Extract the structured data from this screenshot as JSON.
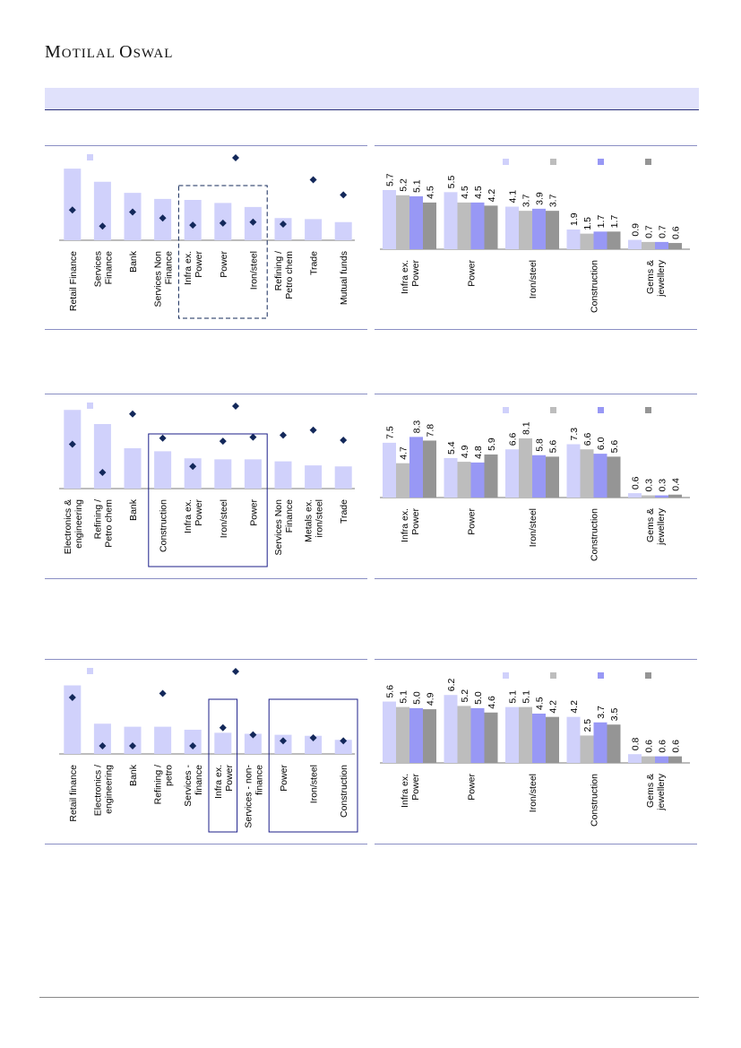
{
  "brand": {
    "logo_text_1": "M",
    "logo_text_2": "OTILAL ",
    "logo_text_3": "O",
    "logo_text_4": "SWAL"
  },
  "colors": {
    "bar_light": "#d0d1fb",
    "bar_grey": "#bdbdbd",
    "bar_blue": "#9898f5",
    "bar_dark": "#959595",
    "diamond": "#13285a",
    "box_dash": "#13285a",
    "box_solid": "#1c1f8a"
  },
  "chart_data": [
    {
      "id": "c1",
      "type": "bar",
      "categories": [
        "Retail Finance",
        "Services Finance",
        "Bank",
        "Services Non Finance",
        "Infra ex. Power",
        "Power",
        "Iron/steel",
        "Refining / Petro chem",
        "Trade",
        "Mutual funds"
      ],
      "category_lines": [
        [
          "Retail Finance"
        ],
        [
          "Services",
          "Finance"
        ],
        [
          "Bank"
        ],
        [
          "Services Non",
          "Finance"
        ],
        [
          "Infra ex.",
          "Power"
        ],
        [
          "Power"
        ],
        [
          "Iron/steel"
        ],
        [
          "Refining /",
          "Petro chem"
        ],
        [
          "Trade"
        ],
        [
          "Mutual funds"
        ]
      ],
      "series": [
        {
          "name": "",
          "kind": "bar",
          "values": [
            71,
            58,
            47,
            41,
            40,
            37,
            33,
            22,
            21,
            18
          ]
        },
        {
          "name": "",
          "kind": "marker",
          "values": [
            30,
            14,
            28,
            22,
            15,
            17,
            18,
            16,
            60,
            45
          ]
        }
      ],
      "highlight": {
        "from": 4,
        "to": 6,
        "style": "dashed"
      }
    },
    {
      "id": "c2",
      "type": "bar",
      "categories": [
        "Infra ex. Power",
        "Power",
        "Iron/steel",
        "Construction",
        "Gems & jewellery"
      ],
      "category_lines": [
        [
          "Infra ex.",
          "Power"
        ],
        [
          "Power"
        ],
        [
          "Iron/steel"
        ],
        [
          "Construction"
        ],
        [
          "Gems &",
          "jewellery"
        ]
      ],
      "series": [
        {
          "name": "",
          "values": [
            5.7,
            5.5,
            4.1,
            1.9,
            0.9
          ]
        },
        {
          "name": "",
          "values": [
            5.2,
            4.5,
            3.7,
            1.5,
            0.7
          ]
        },
        {
          "name": "",
          "values": [
            5.1,
            4.5,
            3.9,
            1.7,
            0.7
          ]
        },
        {
          "name": "",
          "values": [
            4.5,
            4.2,
            3.7,
            1.7,
            0.6
          ]
        }
      ],
      "labels": [
        [
          "5.7",
          "5.2",
          "5.1",
          "4.5"
        ],
        [
          "5.5",
          "4.5",
          "4.5",
          "4.2"
        ],
        [
          "4.1",
          "3.7",
          "3.9",
          "3.7"
        ],
        [
          "1.9",
          "1.5",
          "1.7",
          "1.7"
        ],
        [
          "0.9",
          "0.7",
          "0.7",
          "0.6"
        ]
      ],
      "ylim": [
        0,
        7.6
      ]
    },
    {
      "id": "c3",
      "type": "bar",
      "categories": [
        "Electronics & engineering",
        "Refining / Petro chem",
        "Bank",
        "Construction",
        "Infra ex. Power",
        "Iron/steel",
        "Power",
        "Services Non Finance",
        "Metals ex. iron/steel",
        "Trade"
      ],
      "category_lines": [
        [
          "Electronics &",
          "engineering"
        ],
        [
          "Refining /",
          "Petro chem"
        ],
        [
          "Bank"
        ],
        [
          "Construction"
        ],
        [
          "Infra ex.",
          "Power"
        ],
        [
          "Iron/steel"
        ],
        [
          "Power"
        ],
        [
          "Services Non",
          "Finance"
        ],
        [
          "Metals ex.",
          "iron/steel"
        ],
        [
          "Trade"
        ]
      ],
      "series": [
        {
          "name": "",
          "kind": "bar",
          "values": [
            78,
            64,
            40,
            37,
            30,
            29,
            29,
            27,
            23,
            22
          ]
        },
        {
          "name": "",
          "kind": "marker",
          "values": [
            44,
            16,
            74,
            50,
            22,
            47,
            51,
            53,
            58,
            48
          ]
        }
      ],
      "highlight": {
        "from": 3,
        "to": 6,
        "style": "solid"
      }
    },
    {
      "id": "c4",
      "type": "bar",
      "categories": [
        "Infra ex. Power",
        "Power",
        "Iron/steel",
        "Construction",
        "Gems & jewellery"
      ],
      "category_lines": [
        [
          "Infra ex.",
          "Power"
        ],
        [
          "Power"
        ],
        [
          "Iron/steel"
        ],
        [
          "Construction"
        ],
        [
          "Gems &",
          "jewellery"
        ]
      ],
      "series": [
        {
          "name": "",
          "values": [
            7.5,
            5.4,
            6.6,
            7.3,
            0.6
          ]
        },
        {
          "name": "",
          "values": [
            4.7,
            4.9,
            8.1,
            6.6,
            0.3
          ]
        },
        {
          "name": "",
          "values": [
            8.3,
            4.8,
            5.8,
            6.0,
            0.3
          ]
        },
        {
          "name": "",
          "values": [
            7.8,
            5.9,
            5.6,
            5.6,
            0.4
          ]
        }
      ],
      "labels": [
        [
          "7.5",
          "4.7",
          "8.3",
          "7.8"
        ],
        [
          "5.4",
          "4.9",
          "4.8",
          "5.9"
        ],
        [
          "6.6",
          "8.1",
          "5.8",
          "5.6"
        ],
        [
          "7.3",
          "6.6",
          "6.0",
          "5.6"
        ],
        [
          "0.6",
          "0.3",
          "0.3",
          "0.4"
        ]
      ],
      "ylim": [
        0,
        10.8
      ]
    },
    {
      "id": "c5",
      "type": "bar",
      "categories": [
        "Retail finance",
        "Electronics / engineering",
        "Bank",
        "Refining / petro",
        "Services - finance",
        "Infra ex. Power",
        "Services - non-finance",
        "Power",
        "Iron/steel",
        "Construction"
      ],
      "category_lines": [
        [
          "Retail finance"
        ],
        [
          "Electronics /",
          "engineering"
        ],
        [
          "Bank"
        ],
        [
          "Refining /",
          "petro"
        ],
        [
          "Services -",
          "finance"
        ],
        [
          "Infra ex.",
          "Power"
        ],
        [
          "Services - non-",
          "finance"
        ],
        [
          "Power"
        ],
        [
          "Iron/steel"
        ],
        [
          "Construction"
        ]
      ],
      "series": [
        {
          "name": "",
          "kind": "bar",
          "values": [
            68,
            30,
            27,
            27,
            24,
            21,
            20,
            19,
            18,
            14
          ]
        },
        {
          "name": "",
          "kind": "marker",
          "values": [
            56,
            8,
            8,
            60,
            8,
            26,
            19,
            13,
            16,
            13
          ]
        }
      ],
      "highlights": [
        {
          "from": 5,
          "to": 5,
          "style": "solid"
        },
        {
          "from": 7,
          "to": 9,
          "style": "solid"
        }
      ]
    },
    {
      "id": "c6",
      "type": "bar",
      "categories": [
        "Infra ex. Power",
        "Power",
        "Iron/steel",
        "Construction",
        "Gems & jewellery"
      ],
      "category_lines": [
        [
          "Infra ex.",
          "Power"
        ],
        [
          "Power"
        ],
        [
          "Iron/steel"
        ],
        [
          "Construction"
        ],
        [
          "Gems &",
          "jewellery"
        ]
      ],
      "series": [
        {
          "name": "",
          "values": [
            5.6,
            6.2,
            5.1,
            4.2,
            0.8
          ]
        },
        {
          "name": "",
          "values": [
            5.1,
            5.2,
            5.1,
            2.5,
            0.6
          ]
        },
        {
          "name": "",
          "values": [
            5.0,
            5.0,
            4.5,
            3.7,
            0.6
          ]
        },
        {
          "name": "",
          "values": [
            4.9,
            4.6,
            4.2,
            3.5,
            0.6
          ]
        }
      ],
      "labels": [
        [
          "5.6",
          "5.1",
          "5.0",
          "4.9"
        ],
        [
          "6.2",
          "5.2",
          "5.0",
          "4.6"
        ],
        [
          "5.1",
          "5.1",
          "4.5",
          "4.2"
        ],
        [
          "4.2",
          "2.5",
          "3.7",
          "3.5"
        ],
        [
          "0.8",
          "0.6",
          "0.6",
          "0.6"
        ]
      ],
      "ylim": [
        0,
        7.2
      ]
    }
  ]
}
